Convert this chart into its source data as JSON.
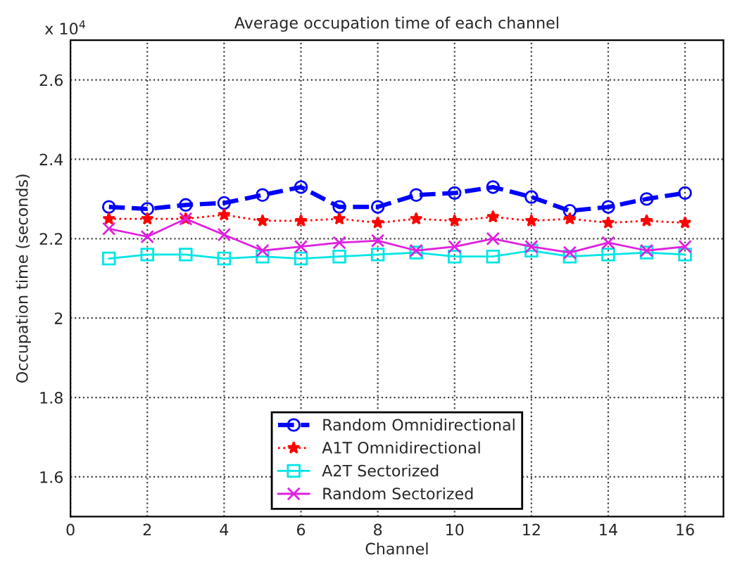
{
  "chart_data": {
    "type": "line",
    "title": "Average occupation time of each channel",
    "xlabel": "Channel",
    "ylabel": "Occupation time (seconds)",
    "annotations": [
      "x 10$^{4}$"
    ],
    "x": [
      1,
      2,
      3,
      4,
      5,
      6,
      7,
      8,
      9,
      10,
      11,
      12,
      13,
      14,
      15,
      16
    ],
    "xlim": [
      0,
      17
    ],
    "xticks": [
      0,
      2,
      4,
      6,
      8,
      10,
      12,
      14,
      16
    ],
    "ylim": [
      1.5,
      2.7
    ],
    "yticks": [
      1.6,
      1.8,
      2,
      2.2,
      2.4,
      2.6
    ],
    "grid": true,
    "legend": "bottom",
    "series": [
      {
        "name": "Random Omnidirectional",
        "color": "#0000ff",
        "marker": "circle",
        "line_style": "dashed",
        "values": [
          2.28,
          2.275,
          2.285,
          2.29,
          2.31,
          2.33,
          2.28,
          2.28,
          2.31,
          2.315,
          2.33,
          2.305,
          2.27,
          2.28,
          2.3,
          2.315
        ]
      },
      {
        "name": "A1T Omnidirectional",
        "color": "#ff0000",
        "marker": "star",
        "line_style": "dotted",
        "values": [
          2.25,
          2.25,
          2.25,
          2.26,
          2.245,
          2.245,
          2.25,
          2.24,
          2.25,
          2.245,
          2.255,
          2.245,
          2.25,
          2.24,
          2.245,
          2.24
        ]
      },
      {
        "name": "A2T Sectorized",
        "color": "#00e5e5",
        "marker": "square",
        "line_style": "solid",
        "values": [
          2.15,
          2.16,
          2.16,
          2.15,
          2.155,
          2.15,
          2.155,
          2.16,
          2.165,
          2.155,
          2.155,
          2.17,
          2.155,
          2.16,
          2.165,
          2.16
        ]
      },
      {
        "name": "Random Sectorized",
        "color": "#e020e0",
        "marker": "cross",
        "line_style": "solid",
        "values": [
          2.225,
          2.205,
          2.25,
          2.21,
          2.17,
          2.18,
          2.19,
          2.195,
          2.17,
          2.18,
          2.2,
          2.18,
          2.165,
          2.19,
          2.17,
          2.18
        ]
      }
    ]
  }
}
